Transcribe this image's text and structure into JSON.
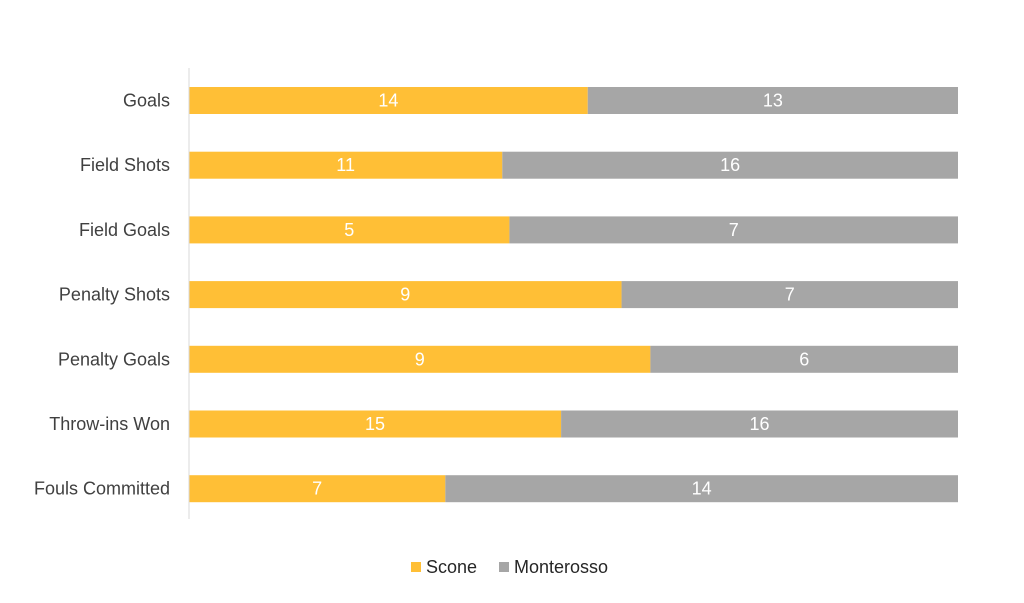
{
  "chart_data": {
    "type": "bar",
    "orientation": "horizontal",
    "stacking": "percent",
    "categories": [
      "Goals",
      "Field Shots",
      "Field Goals",
      "Penalty Shots",
      "Penalty Goals",
      "Throw-ins Won",
      "Fouls Committed"
    ],
    "series": [
      {
        "name": "Scone",
        "values": [
          14,
          11,
          5,
          9,
          9,
          15,
          7
        ],
        "color": "#FFBF36"
      },
      {
        "name": "Monterosso",
        "values": [
          13,
          16,
          7,
          7,
          6,
          16,
          14
        ],
        "color": "#A6A6A6"
      }
    ],
    "data_labels": true,
    "gridlines": false,
    "legend_position": "bottom",
    "axis_color": "#D9D9D9"
  }
}
